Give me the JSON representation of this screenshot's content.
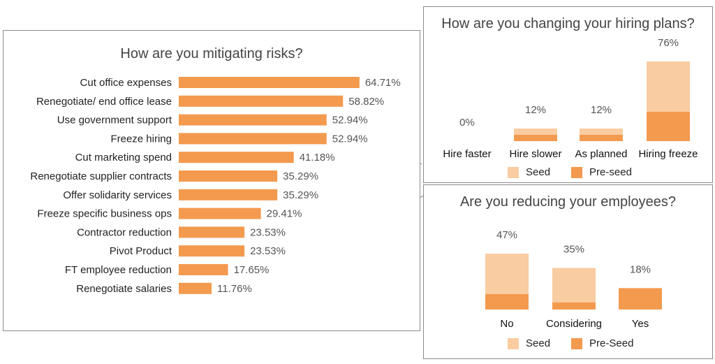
{
  "colors": {
    "preseed": "#f39a4f",
    "seed": "#f9cca1"
  },
  "chart_data": [
    {
      "type": "bar",
      "orientation": "horizontal",
      "title": "How are you mitigating risks?",
      "categories": [
        "Cut office expenses",
        "Renegotiate/ end office lease",
        "Use government support",
        "Freeze hiring",
        "Cut marketing spend",
        "Renegotiate supplier contracts",
        "Offer solidarity services",
        "Freeze specific business ops",
        "Contractor reduction",
        "Pivot Product",
        "FT employee reduction",
        "Renegotiate salaries"
      ],
      "values": [
        64.71,
        58.82,
        52.94,
        52.94,
        41.18,
        35.29,
        35.29,
        29.41,
        23.53,
        23.53,
        17.65,
        11.76
      ],
      "value_labels": [
        "64.71%",
        "58.82%",
        "52.94%",
        "52.94%",
        "41.18%",
        "35.29%",
        "35.29%",
        "29.41%",
        "23.53%",
        "23.53%",
        "17.65%",
        "11.76%"
      ],
      "grid": false
    },
    {
      "type": "bar",
      "stacked": true,
      "title": "How are you changing your hiring plans?",
      "categories": [
        "Hire faster",
        "Hire slower",
        "As planned",
        "Hiring freeze"
      ],
      "totals": [
        0,
        12,
        12,
        76
      ],
      "total_labels": [
        "0%",
        "12%",
        "12%",
        "76%"
      ],
      "series": [
        {
          "name": "Pre-seed",
          "values": [
            0,
            6,
            6,
            28
          ]
        },
        {
          "name": "Seed",
          "values": [
            0,
            6,
            6,
            48
          ]
        }
      ],
      "legend": "bottom"
    },
    {
      "type": "bar",
      "stacked": true,
      "title": "Are you reducing your employees?",
      "categories": [
        "No",
        "Considering",
        "Yes"
      ],
      "totals": [
        47,
        35,
        18
      ],
      "total_labels": [
        "47%",
        "35%",
        "18%"
      ],
      "series": [
        {
          "name": "Pre-Seed",
          "values": [
            13,
            6,
            18
          ]
        },
        {
          "name": "Seed",
          "values": [
            34,
            29,
            0
          ]
        }
      ],
      "legend": "bottom"
    }
  ]
}
